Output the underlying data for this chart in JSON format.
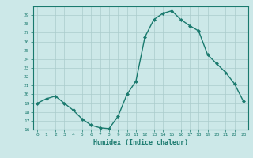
{
  "x": [
    0,
    1,
    2,
    3,
    4,
    5,
    6,
    7,
    8,
    9,
    10,
    11,
    12,
    13,
    14,
    15,
    16,
    17,
    18,
    19,
    20,
    21,
    22,
    23
  ],
  "y": [
    19,
    19.5,
    19.8,
    19.0,
    18.2,
    17.2,
    16.5,
    16.2,
    16.1,
    17.5,
    20.0,
    21.5,
    26.5,
    28.5,
    29.2,
    29.5,
    28.5,
    27.8,
    27.2,
    24.5,
    23.5,
    22.5,
    21.2,
    19.2
  ],
  "xlabel": "Humidex (Indice chaleur)",
  "ylim": [
    16,
    30
  ],
  "xlim": [
    -0.5,
    23.5
  ],
  "yticks": [
    16,
    17,
    18,
    19,
    20,
    21,
    22,
    23,
    24,
    25,
    26,
    27,
    28,
    29
  ],
  "xticks": [
    0,
    1,
    2,
    3,
    4,
    5,
    6,
    7,
    8,
    9,
    10,
    11,
    12,
    13,
    14,
    15,
    16,
    17,
    18,
    19,
    20,
    21,
    22,
    23
  ],
  "line_color": "#1a7a6e",
  "marker_color": "#1a7a6e",
  "bg_color": "#cce8e8",
  "grid_color": "#aacccc",
  "tick_color": "#1a7a6e",
  "spine_color": "#1a7a6e"
}
